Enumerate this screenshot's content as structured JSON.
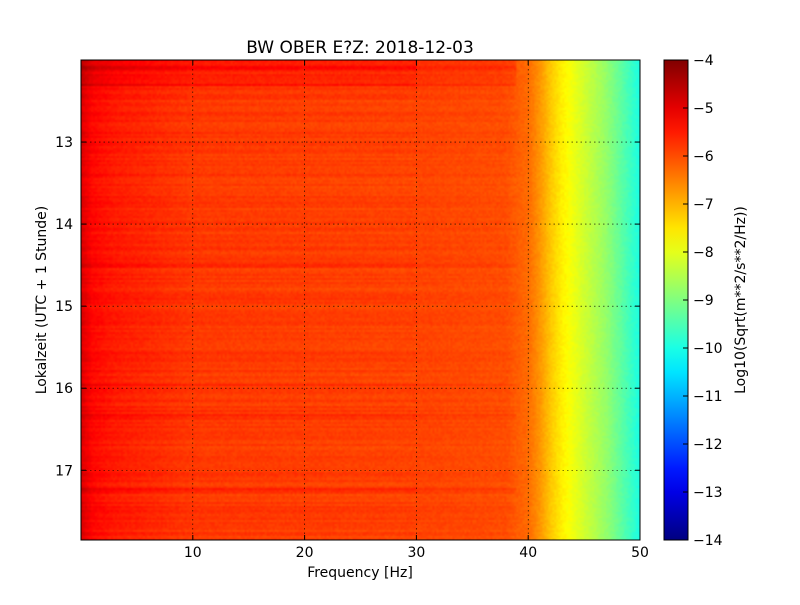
{
  "chart_data": {
    "type": "heatmap",
    "title": "BW OBER E?Z: 2018-12-03",
    "xlabel": "Frequency [Hz]",
    "ylabel": "Lokalzeit (UTC + 1 Stunde)",
    "colorbar_label": "Log10(Sqrt(m**2/s**2/Hz))",
    "xlim": [
      0,
      50
    ],
    "ylim": [
      17.85,
      12.0
    ],
    "y_inverted": true,
    "x_ticks": [
      10,
      20,
      30,
      40,
      50
    ],
    "x_tick_labels": [
      "10",
      "20",
      "30",
      "40",
      "50"
    ],
    "y_ticks": [
      13,
      14,
      15,
      16,
      17
    ],
    "y_tick_labels": [
      "13",
      "14",
      "15",
      "16",
      "17"
    ],
    "colorbar_range": [
      -14,
      -4
    ],
    "colorbar_ticks": [
      -4,
      -5,
      -6,
      -7,
      -8,
      -9,
      -10,
      -11,
      -12,
      -13,
      -14
    ],
    "colorbar_tick_labels": [
      "−4",
      "−5",
      "−6",
      "−7",
      "−8",
      "−9",
      "−10",
      "−11",
      "−12",
      "−13",
      "−14"
    ],
    "colormap": "jet",
    "grid": true,
    "spectrum_profile": {
      "frequency_hz": [
        0,
        1,
        3,
        10,
        20,
        30,
        38,
        40,
        41,
        42,
        43,
        44,
        45,
        46,
        47,
        48,
        49,
        50
      ],
      "log10_amplitude": [
        -4.9,
        -5.3,
        -5.5,
        -5.8,
        -5.85,
        -5.9,
        -6.0,
        -6.3,
        -6.7,
        -7.2,
        -7.6,
        -7.9,
        -8.2,
        -8.5,
        -8.8,
        -9.2,
        -9.6,
        -10.0
      ]
    },
    "bright_bands_local_hour": [
      12.1,
      12.3,
      14.5,
      15.96,
      16.33,
      17.23
    ]
  }
}
